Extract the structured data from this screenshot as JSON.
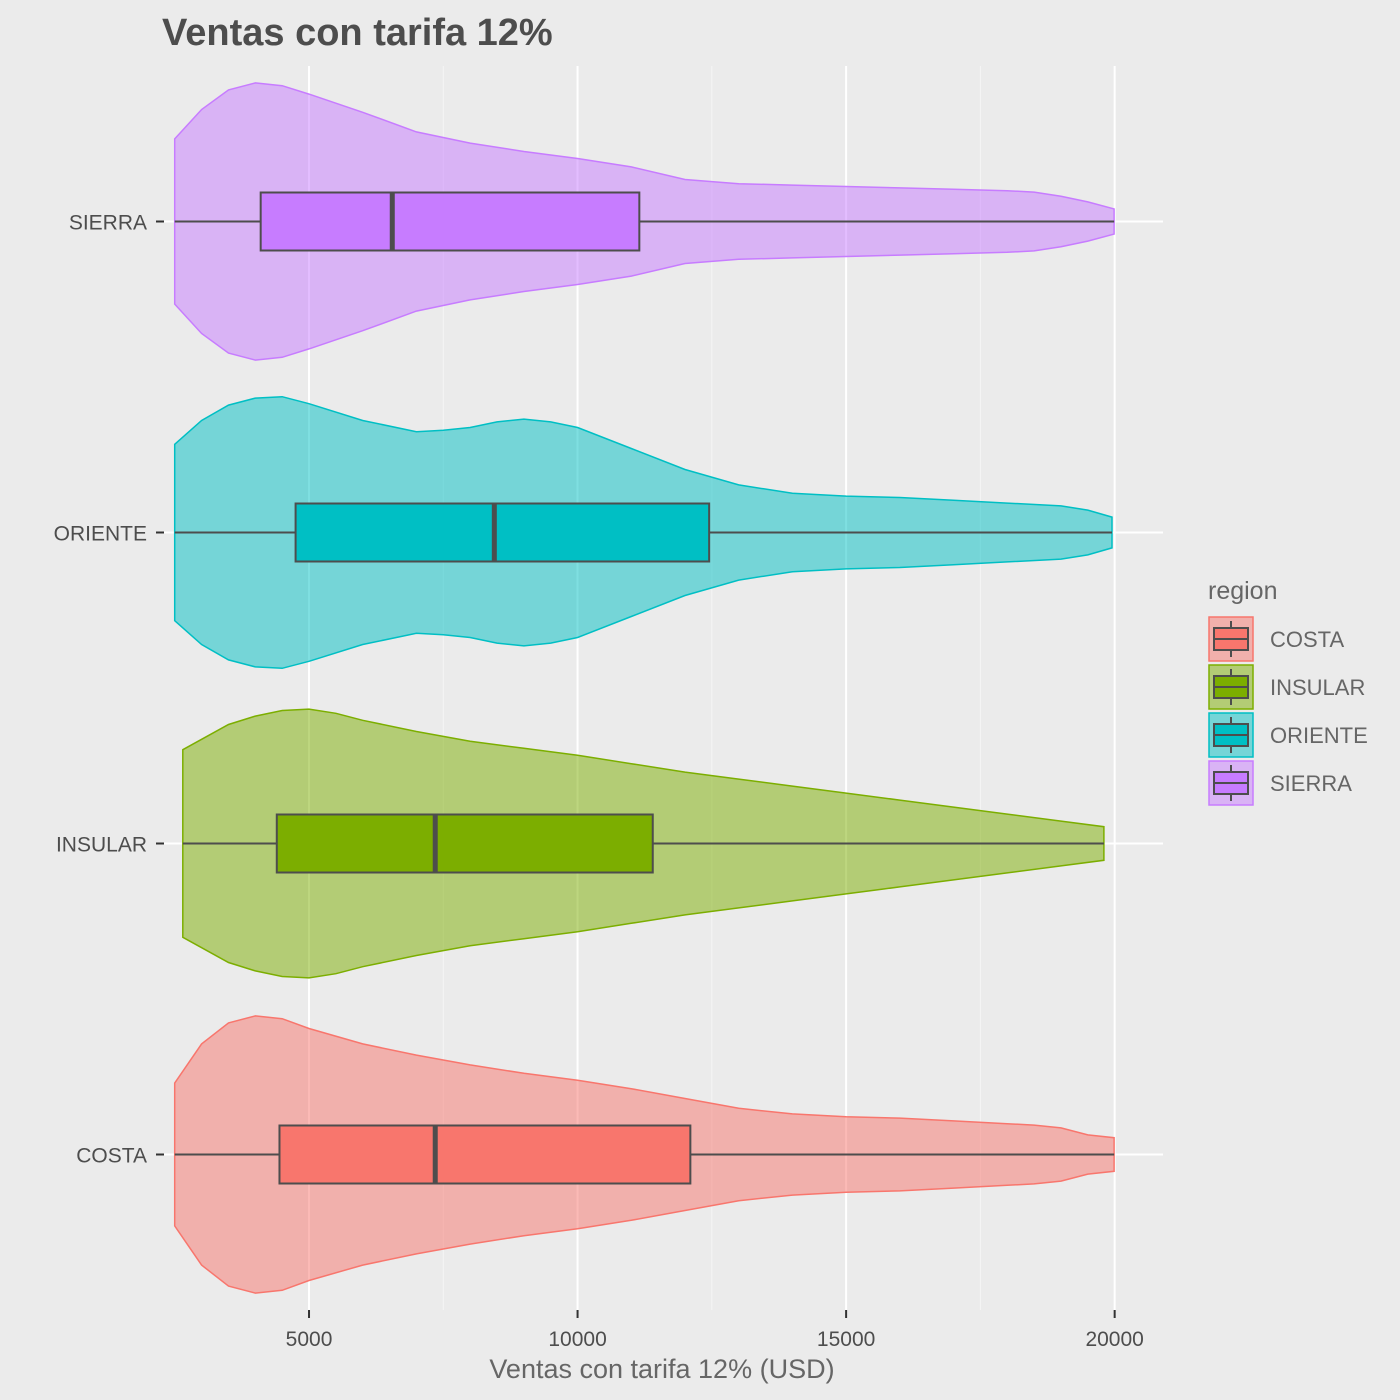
{
  "chart_data": {
    "type": "violin",
    "title": "Ventas con tarifa 12%",
    "xlabel": "Ventas con tarifa 12% (USD)",
    "ylabel": "",
    "xlim": [
      2300,
      20900
    ],
    "x_ticks": [
      5000,
      10000,
      15000,
      20000
    ],
    "x_tick_labels": [
      "5000",
      "10000",
      "15000",
      "20000"
    ],
    "categories": [
      "COSTA",
      "INSULAR",
      "ORIENTE",
      "SIERRA"
    ],
    "grid": true,
    "legend": {
      "title": "region",
      "position": "right",
      "entries": [
        "COSTA",
        "INSULAR",
        "ORIENTE",
        "SIERRA"
      ]
    },
    "series": [
      {
        "name": "COSTA",
        "color": "#F8766D",
        "box": {
          "whisker_low": 2500,
          "q1": 4450,
          "median": 7350,
          "q3": 12100,
          "whisker_high": 19990
        },
        "violin_range": [
          2500,
          19990
        ],
        "density_x": [
          2500,
          3000,
          3500,
          4000,
          4500,
          5000,
          6000,
          7000,
          8000,
          9000,
          10000,
          11000,
          12000,
          13000,
          14000,
          15000,
          16000,
          17000,
          18000,
          18500,
          19000,
          19500,
          19990
        ],
        "density_halfwidth": [
          0.51,
          0.79,
          0.94,
          0.99,
          0.97,
          0.9,
          0.79,
          0.71,
          0.64,
          0.58,
          0.53,
          0.47,
          0.4,
          0.33,
          0.29,
          0.27,
          0.26,
          0.24,
          0.22,
          0.21,
          0.19,
          0.14,
          0.12
        ]
      },
      {
        "name": "INSULAR",
        "color": "#7CAE00",
        "box": {
          "whisker_low": 2650,
          "q1": 4400,
          "median": 7350,
          "q3": 11400,
          "whisker_high": 19800
        },
        "violin_range": [
          2650,
          19800
        ],
        "density_x": [
          2650,
          3500,
          4000,
          4500,
          5000,
          5500,
          6000,
          7000,
          8000,
          9000,
          10000,
          11000,
          12000,
          13000,
          14000,
          15000,
          16000,
          17000,
          18000,
          19000,
          19800
        ],
        "density_halfwidth": [
          0.67,
          0.85,
          0.91,
          0.95,
          0.96,
          0.93,
          0.88,
          0.8,
          0.73,
          0.68,
          0.63,
          0.57,
          0.51,
          0.46,
          0.41,
          0.36,
          0.31,
          0.26,
          0.21,
          0.16,
          0.12
        ]
      },
      {
        "name": "ORIENTE",
        "color": "#00BFC4",
        "box": {
          "whisker_low": 2500,
          "q1": 4750,
          "median": 8450,
          "q3": 12450,
          "whisker_high": 19950
        },
        "violin_range": [
          2500,
          19950
        ],
        "density_x": [
          2500,
          3000,
          3500,
          4000,
          4500,
          5000,
          6000,
          7000,
          7500,
          8000,
          8500,
          9000,
          9500,
          10000,
          11000,
          12000,
          13000,
          14000,
          15000,
          16000,
          17000,
          18000,
          19000,
          19500,
          19950
        ],
        "density_halfwidth": [
          0.63,
          0.8,
          0.91,
          0.96,
          0.97,
          0.92,
          0.8,
          0.72,
          0.73,
          0.75,
          0.79,
          0.81,
          0.79,
          0.75,
          0.6,
          0.45,
          0.34,
          0.28,
          0.26,
          0.25,
          0.23,
          0.21,
          0.19,
          0.16,
          0.11
        ]
      },
      {
        "name": "SIERRA",
        "color": "#C77CFF",
        "box": {
          "whisker_low": 2500,
          "q1": 4100,
          "median": 6550,
          "q3": 11150,
          "whisker_high": 19990
        },
        "violin_range": [
          2500,
          19990
        ],
        "density_x": [
          2500,
          3000,
          3500,
          4000,
          4500,
          5000,
          6000,
          7000,
          8000,
          9000,
          10000,
          11000,
          12000,
          13000,
          14000,
          15000,
          16000,
          17000,
          18000,
          18500,
          19000,
          19500,
          19990
        ],
        "density_halfwidth": [
          0.59,
          0.8,
          0.94,
          0.99,
          0.97,
          0.91,
          0.78,
          0.64,
          0.56,
          0.5,
          0.45,
          0.39,
          0.3,
          0.27,
          0.26,
          0.25,
          0.24,
          0.23,
          0.22,
          0.21,
          0.18,
          0.14,
          0.09
        ]
      }
    ]
  }
}
